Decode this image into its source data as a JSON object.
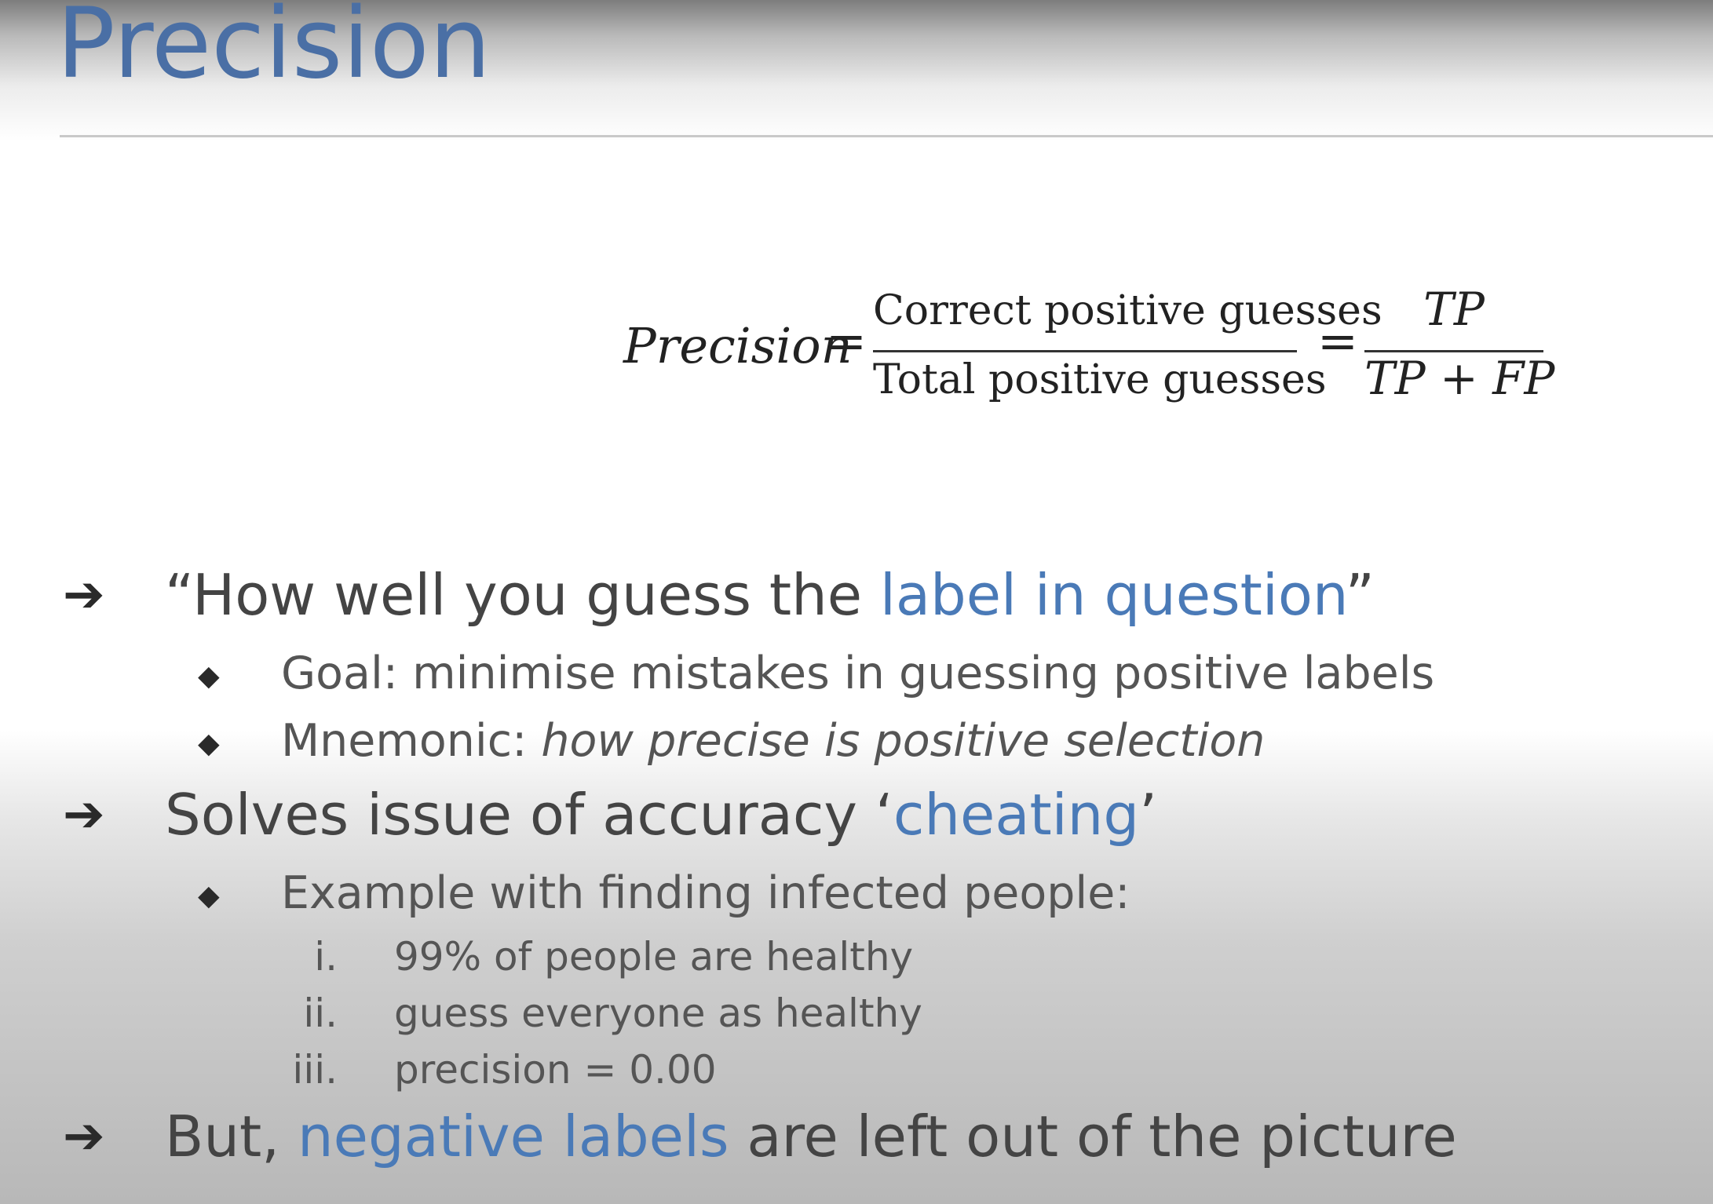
{
  "slide": {
    "title": "Precision",
    "formula": {
      "lhs": "Precision",
      "equals": "=",
      "numerator_words": "Correct positive guesses",
      "denominator_words": "Total positive guesses",
      "numerator_symbols": "TP",
      "denominator_symbols": "TP + FP"
    },
    "bullets": [
      {
        "marker": "➔",
        "prefix": "“How well you guess the ",
        "highlight": "label in question",
        "suffix": "”",
        "sub": [
          {
            "marker": "◆",
            "text": "Goal: minimise mistakes in guessing positive labels"
          },
          {
            "marker": "◆",
            "prefix": "Mnemonic: ",
            "emphasis": "how precise is positive selection"
          }
        ]
      },
      {
        "marker": "➔",
        "prefix": "Solves issue of accuracy ‘",
        "highlight": "cheating",
        "suffix": "’",
        "sub": [
          {
            "marker": "◆",
            "text": "Example with finding infected people:",
            "items": [
              {
                "numeral": "i.",
                "text": "99% of people are healthy"
              },
              {
                "numeral": "ii.",
                "text": "guess everyone as healthy"
              },
              {
                "numeral": "iii.",
                "text": "precision = 0.00"
              }
            ]
          }
        ]
      },
      {
        "marker": "➔",
        "prefix": "But, ",
        "highlight": "negative labels",
        "suffix": " are left out of the picture"
      }
    ]
  },
  "colors": {
    "title": "#4a6fa5",
    "highlight": "#4a7ab7",
    "body_text": "#444444",
    "sub_text": "#555555"
  }
}
